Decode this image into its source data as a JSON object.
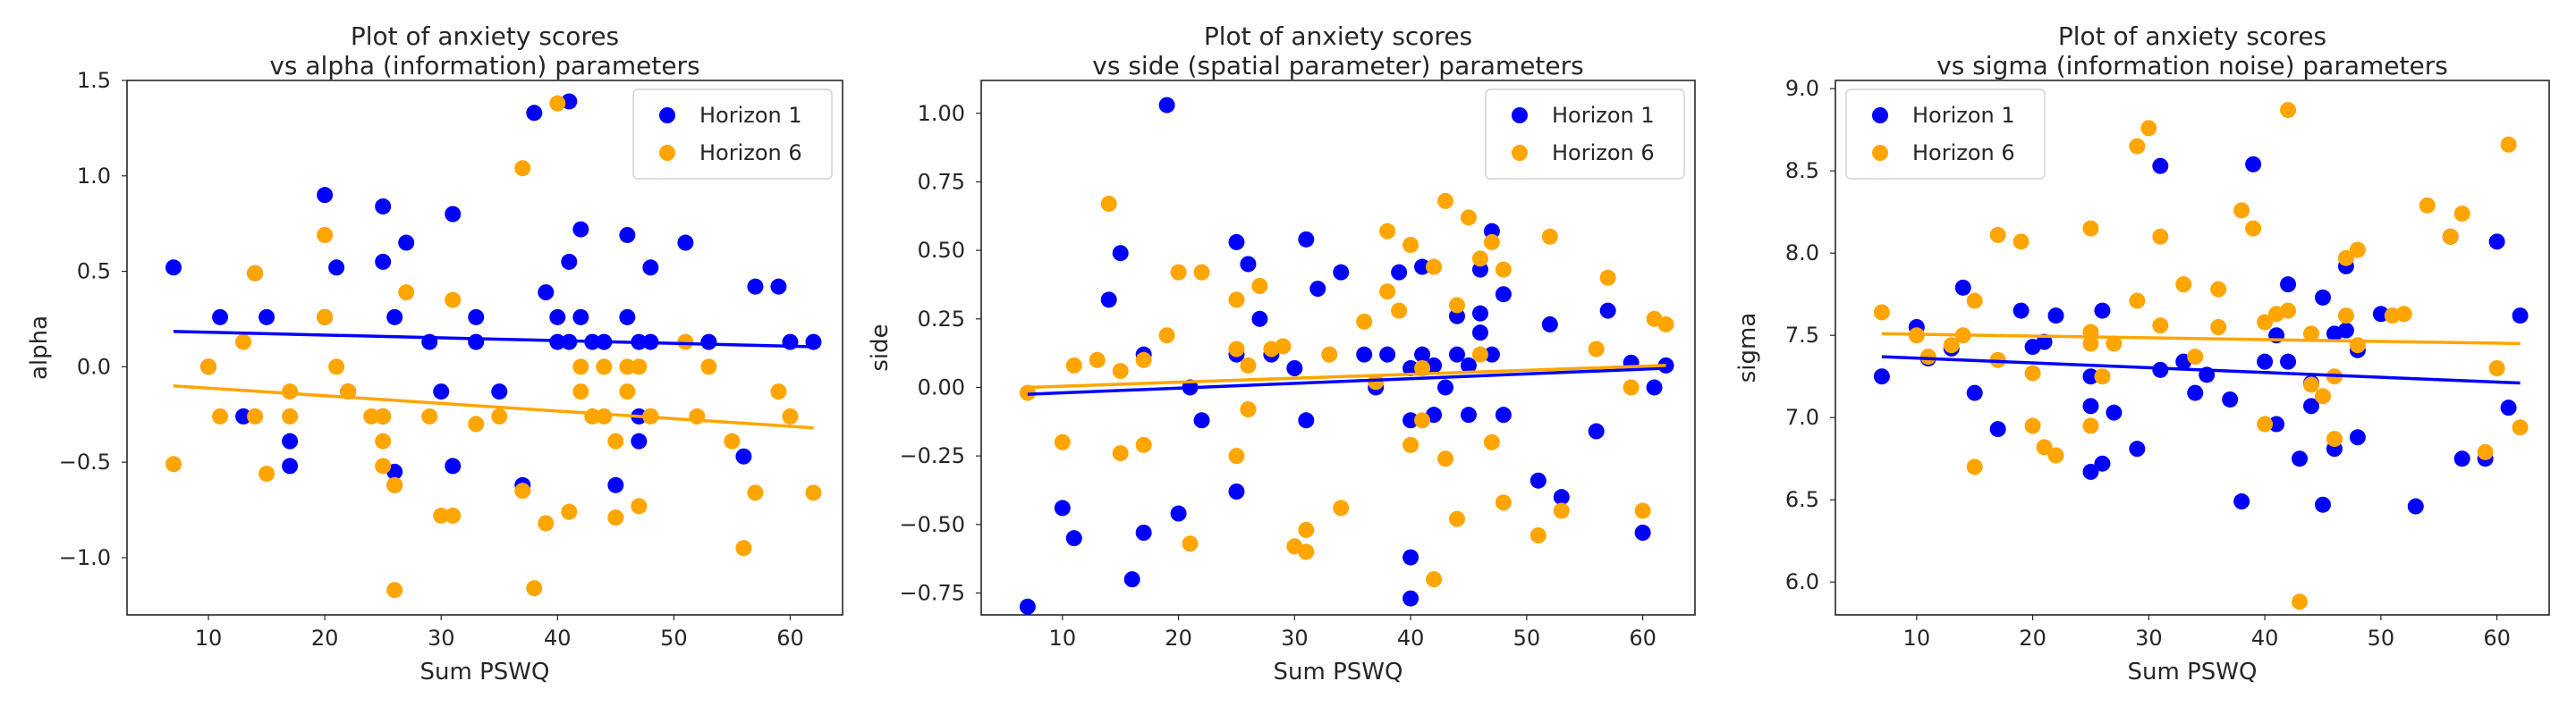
{
  "colors": {
    "h1": "#0000ff",
    "h6": "#ffa500"
  },
  "chart_data": [
    {
      "type": "scatter",
      "title": "Plot of anxiety scores\nvs alpha (information) parameters",
      "xlabel": "Sum PSWQ",
      "ylabel": "alpha",
      "xlim": [
        3,
        64.5
      ],
      "ylim": [
        -1.3,
        1.5
      ],
      "xticks": [
        10,
        20,
        30,
        40,
        50,
        60
      ],
      "yticks": [
        -1.0,
        -0.5,
        0.0,
        0.5,
        1.0,
        1.5
      ],
      "ytick_labels": [
        "−1.0",
        "−0.5",
        "0.0",
        "0.5",
        "1.0",
        "1.5"
      ],
      "legend_loc": "upper right",
      "grid": false,
      "series": [
        {
          "name": "Horizon 1",
          "x": [
            7,
            10,
            11,
            13,
            14,
            15,
            17,
            17,
            20,
            21,
            22,
            25,
            25,
            25,
            26,
            26,
            26,
            27,
            29,
            31,
            31,
            33,
            33,
            35,
            37,
            38,
            39,
            40,
            40,
            41,
            41,
            41,
            42,
            42,
            43,
            44,
            45,
            46,
            46,
            47,
            47,
            48,
            48,
            51,
            53,
            56,
            57,
            59,
            60,
            62,
            30,
            20,
            47
          ],
          "y": [
            0.52,
            0.0,
            0.26,
            -0.26,
            0.49,
            0.26,
            -0.39,
            -0.52,
            0.9,
            0.52,
            -0.13,
            0.84,
            0.55,
            -0.26,
            -0.55,
            0.26,
            -0.62,
            0.65,
            0.13,
            0.8,
            -0.52,
            0.13,
            0.26,
            -0.13,
            -0.62,
            1.33,
            0.39,
            0.26,
            0.13,
            1.39,
            0.55,
            0.13,
            0.26,
            0.72,
            0.13,
            0.13,
            -0.62,
            0.26,
            0.69,
            0.13,
            -0.39,
            0.13,
            0.52,
            0.65,
            0.13,
            -0.47,
            0.42,
            0.42,
            0.13,
            0.13,
            -0.13,
            0.26,
            -0.26
          ],
          "trend": [
            0.185,
            0.105
          ]
        },
        {
          "name": "Horizon 6",
          "x": [
            7,
            10,
            11,
            13,
            14,
            15,
            17,
            17,
            20,
            20,
            21,
            22,
            25,
            25,
            25,
            26,
            26,
            27,
            29,
            31,
            31,
            33,
            35,
            37,
            37,
            38,
            39,
            40,
            41,
            42,
            42,
            43,
            44,
            45,
            46,
            46,
            47,
            47,
            48,
            48,
            51,
            53,
            56,
            57,
            59,
            60,
            62,
            14,
            24,
            30,
            44,
            52,
            55,
            45
          ],
          "y": [
            -0.51,
            0.0,
            -0.26,
            0.13,
            0.49,
            -0.56,
            -0.13,
            -0.26,
            0.26,
            0.69,
            0.0,
            -0.13,
            -0.39,
            -0.52,
            -0.26,
            -0.62,
            -1.17,
            0.39,
            -0.26,
            0.35,
            -0.78,
            -0.3,
            -0.26,
            1.04,
            -0.65,
            -1.16,
            -0.82,
            1.38,
            -0.76,
            -0.13,
            0.0,
            -0.26,
            0.0,
            -0.79,
            -0.13,
            0.0,
            0.0,
            -0.73,
            -0.26,
            -0.26,
            0.13,
            0.0,
            -0.95,
            -0.66,
            -0.13,
            -0.26,
            -0.66,
            -0.26,
            -0.26,
            -0.78,
            -0.26,
            -0.26,
            -0.39,
            -0.39
          ],
          "trend": [
            -0.1,
            -0.32
          ]
        }
      ]
    },
    {
      "type": "scatter",
      "title": "Plot of anxiety scores\nvs side (spatial parameter) parameters",
      "xlabel": "Sum PSWQ",
      "ylabel": "side",
      "xlim": [
        3,
        64.5
      ],
      "ylim": [
        -0.83,
        1.12
      ],
      "xticks": [
        10,
        20,
        30,
        40,
        50,
        60
      ],
      "yticks": [
        -0.75,
        -0.5,
        -0.25,
        0.0,
        0.25,
        0.5,
        0.75,
        1.0
      ],
      "ytick_labels": [
        "−0.75",
        "−0.50",
        "−0.25",
        "0.00",
        "0.25",
        "0.50",
        "0.75",
        "1.00"
      ],
      "legend_loc": "upper right",
      "grid": false,
      "series": [
        {
          "name": "Horizon 1",
          "x": [
            7,
            10,
            11,
            14,
            15,
            16,
            17,
            17,
            19,
            20,
            21,
            22,
            25,
            25,
            25,
            26,
            27,
            28,
            31,
            31,
            32,
            34,
            36,
            37,
            38,
            39,
            40,
            40,
            40,
            40,
            41,
            41,
            42,
            42,
            43,
            44,
            44,
            45,
            46,
            46,
            47,
            47,
            48,
            48,
            51,
            52,
            53,
            56,
            57,
            59,
            60,
            61,
            62,
            30,
            45,
            46
          ],
          "y": [
            -0.8,
            -0.44,
            -0.55,
            0.32,
            0.49,
            -0.7,
            0.12,
            -0.53,
            1.03,
            -0.46,
            0.0,
            -0.12,
            0.53,
            -0.38,
            0.12,
            0.45,
            0.25,
            0.12,
            0.54,
            -0.12,
            0.36,
            0.42,
            0.12,
            0.0,
            0.12,
            0.42,
            -0.62,
            -0.77,
            0.07,
            -0.12,
            0.44,
            0.12,
            0.08,
            -0.1,
            0.0,
            0.12,
            0.26,
            0.08,
            0.43,
            0.27,
            0.57,
            0.12,
            0.34,
            -0.1,
            -0.34,
            0.23,
            -0.4,
            -0.16,
            0.28,
            0.09,
            -0.53,
            0.0,
            0.08,
            0.07,
            -0.1,
            0.2
          ],
          "trend": [
            -0.025,
            0.07
          ]
        },
        {
          "name": "Horizon 6",
          "x": [
            7,
            10,
            11,
            13,
            14,
            15,
            17,
            17,
            19,
            20,
            21,
            22,
            25,
            25,
            25,
            26,
            27,
            28,
            30,
            31,
            31,
            33,
            34,
            36,
            37,
            38,
            39,
            40,
            40,
            41,
            41,
            42,
            42,
            43,
            44,
            44,
            45,
            46,
            46,
            47,
            47,
            48,
            48,
            51,
            52,
            53,
            56,
            57,
            59,
            60,
            61,
            62,
            15,
            26,
            29,
            38,
            43
          ],
          "y": [
            -0.02,
            -0.2,
            0.08,
            0.1,
            0.67,
            -0.24,
            -0.21,
            0.1,
            0.19,
            0.42,
            -0.57,
            0.42,
            0.32,
            -0.25,
            0.14,
            -0.08,
            0.37,
            0.14,
            -0.58,
            -0.52,
            -0.6,
            0.12,
            -0.44,
            0.24,
            0.02,
            0.57,
            0.28,
            0.52,
            -0.21,
            0.07,
            -0.12,
            0.44,
            -0.7,
            0.68,
            0.3,
            -0.48,
            0.62,
            0.47,
            0.12,
            0.53,
            -0.2,
            0.43,
            -0.42,
            -0.54,
            0.55,
            -0.45,
            0.14,
            0.4,
            0.0,
            -0.45,
            0.25,
            0.23,
            0.06,
            0.08,
            0.15,
            0.35,
            -0.26
          ],
          "trend": [
            0.0,
            0.08
          ]
        }
      ]
    },
    {
      "type": "scatter",
      "title": "Plot of anxiety scores\nvs sigma (information noise) parameters",
      "xlabel": "Sum PSWQ",
      "ylabel": "sigma",
      "xlim": [
        3,
        64.5
      ],
      "ylim": [
        5.8,
        9.05
      ],
      "xticks": [
        10,
        20,
        30,
        40,
        50,
        60
      ],
      "yticks": [
        6.0,
        6.5,
        7.0,
        7.5,
        8.0,
        8.5,
        9.0
      ],
      "ytick_labels": [
        "6.0",
        "6.5",
        "7.0",
        "7.5",
        "8.0",
        "8.5",
        "9.0"
      ],
      "legend_loc": "upper left",
      "grid": false,
      "series": [
        {
          "name": "Horizon 1",
          "x": [
            7,
            10,
            11,
            13,
            14,
            15,
            17,
            19,
            20,
            21,
            22,
            25,
            25,
            25,
            26,
            26,
            27,
            29,
            31,
            31,
            33,
            35,
            37,
            38,
            39,
            40,
            41,
            41,
            42,
            42,
            43,
            44,
            44,
            45,
            46,
            46,
            47,
            47,
            48,
            48,
            50,
            53,
            56,
            57,
            59,
            60,
            61,
            62,
            34,
            45
          ],
          "y": [
            7.25,
            7.55,
            7.36,
            7.42,
            7.79,
            7.15,
            6.93,
            7.65,
            7.43,
            7.46,
            7.62,
            7.07,
            6.67,
            7.25,
            6.72,
            7.65,
            7.03,
            6.81,
            8.53,
            7.29,
            7.34,
            7.26,
            7.11,
            6.49,
            8.54,
            7.34,
            7.5,
            6.96,
            7.34,
            7.81,
            6.75,
            7.07,
            7.21,
            7.73,
            7.51,
            6.81,
            7.92,
            7.53,
            6.88,
            7.41,
            7.63,
            6.46,
            8.1,
            6.75,
            6.75,
            8.07,
            7.06,
            7.62,
            7.15,
            6.47
          ],
          "trend": [
            7.37,
            7.21
          ]
        },
        {
          "name": "Horizon 6",
          "x": [
            7,
            10,
            11,
            13,
            14,
            15,
            17,
            17,
            19,
            20,
            21,
            22,
            25,
            25,
            25,
            26,
            27,
            29,
            30,
            31,
            31,
            33,
            34,
            36,
            38,
            39,
            40,
            40,
            41,
            42,
            42,
            43,
            44,
            44,
            45,
            46,
            46,
            47,
            47,
            48,
            48,
            51,
            52,
            54,
            56,
            57,
            59,
            60,
            61,
            62,
            15,
            20,
            25,
            29,
            36
          ],
          "y": [
            7.64,
            7.5,
            7.37,
            7.44,
            7.5,
            6.7,
            8.11,
            7.35,
            8.07,
            7.27,
            6.82,
            6.77,
            8.15,
            6.95,
            7.45,
            7.25,
            7.45,
            8.65,
            8.76,
            8.1,
            7.56,
            7.81,
            7.37,
            7.55,
            8.26,
            8.15,
            7.58,
            6.96,
            7.63,
            8.87,
            7.65,
            5.88,
            7.2,
            7.51,
            7.13,
            6.87,
            7.25,
            7.97,
            7.62,
            7.44,
            8.02,
            7.62,
            7.63,
            8.29,
            8.1,
            8.24,
            6.79,
            7.3,
            8.66,
            6.94,
            7.71,
            6.95,
            7.52,
            7.71,
            7.78
          ],
          "trend": [
            7.51,
            7.45
          ]
        }
      ]
    }
  ]
}
